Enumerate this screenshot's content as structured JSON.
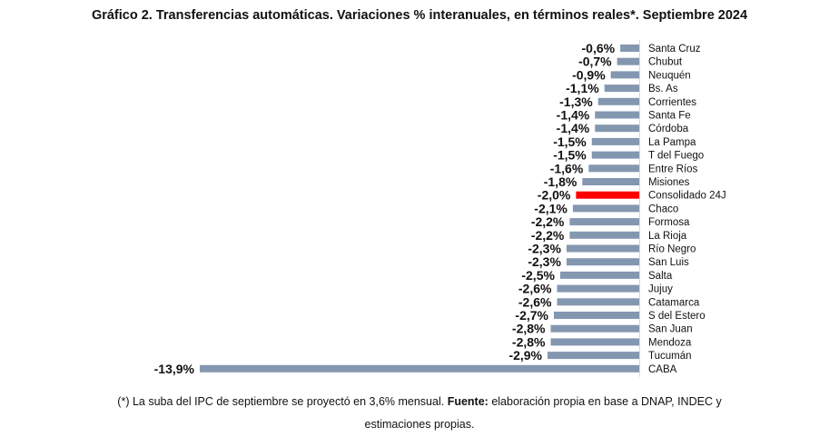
{
  "chart_data": {
    "type": "bar",
    "orientation": "horizontal",
    "title": "Gráfico 2. Transferencias automáticas. Variaciones % interanuales, en términos reales*. Septiembre 2024",
    "categories": [
      "Santa Cruz",
      "Chubut",
      "Neuquén",
      "Bs. As",
      "Corrientes",
      "Santa Fe",
      "Córdoba",
      "La Pampa",
      "T del Fuego",
      "Entre Ríos",
      "Misiones",
      "Consolidado 24J",
      "Chaco",
      "Formosa",
      "La Rioja",
      "Río Negro",
      "San Luis",
      "Salta",
      "Jujuy",
      "Catamarca",
      "S del Estero",
      "San Juan",
      "Mendoza",
      "Tucumán",
      "CABA"
    ],
    "values": [
      -0.6,
      -0.7,
      -0.9,
      -1.1,
      -1.3,
      -1.4,
      -1.4,
      -1.5,
      -1.5,
      -1.6,
      -1.8,
      -2.0,
      -2.1,
      -2.2,
      -2.2,
      -2.3,
      -2.3,
      -2.5,
      -2.6,
      -2.6,
      -2.7,
      -2.8,
      -2.8,
      -2.9,
      -13.9
    ],
    "data_labels": [
      "-0,6%",
      "-0,7%",
      "-0,9%",
      "-1,1%",
      "-1,3%",
      "-1,4%",
      "-1,4%",
      "-1,5%",
      "-1,5%",
      "-1,6%",
      "-1,8%",
      "-2,0%",
      "-2,1%",
      "-2,2%",
      "-2,2%",
      "-2,3%",
      "-2,3%",
      "-2,5%",
      "-2,6%",
      "-2,6%",
      "-2,7%",
      "-2,8%",
      "-2,8%",
      "-2,9%",
      "-13,9%"
    ],
    "highlight": "Consolidado 24J",
    "xlim": [
      -13.9,
      0
    ],
    "colors": {
      "bar": "#8497b0",
      "highlight": "#ff0000",
      "axis": "#d9d9d9"
    },
    "xlabel": "",
    "ylabel": ""
  },
  "notes": {
    "line1_a": "(*) La suba del IPC de septiembre se proyectó en 3,6% mensual. ",
    "line1_b": "Fuente:",
    "line1_c": " elaboración propia en base a DNAP, INDEC y",
    "line2": "estimaciones propias."
  }
}
